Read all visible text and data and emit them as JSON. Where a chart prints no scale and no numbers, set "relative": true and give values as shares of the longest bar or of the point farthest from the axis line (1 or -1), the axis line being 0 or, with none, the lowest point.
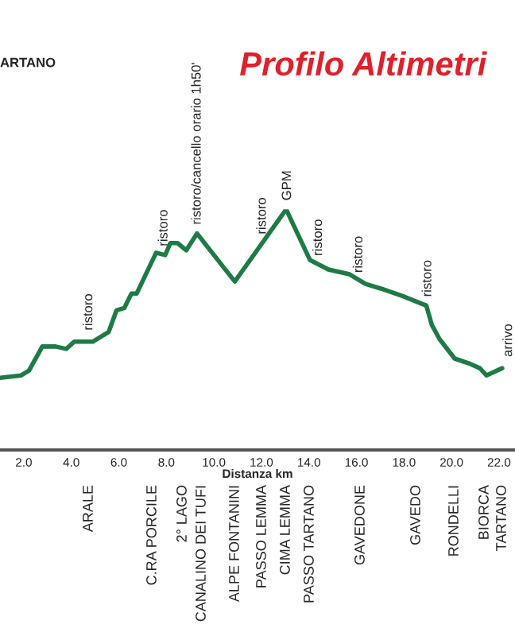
{
  "chart_data": {
    "type": "line",
    "title": "Profilo Altimetri",
    "xlabel": "Distanza km",
    "relative": true,
    "tick_labels": "x",
    "grid": false,
    "legend": false,
    "xlim": [
      1.0,
      22.67
    ],
    "xticks": [
      {
        "value": 2,
        "label": "2.0"
      },
      {
        "value": 4,
        "label": "4.0"
      },
      {
        "value": 6,
        "label": "6.0"
      },
      {
        "value": 8,
        "label": "8.0"
      },
      {
        "value": 10,
        "label": "10.0"
      },
      {
        "value": 12,
        "label": "12.0"
      },
      {
        "value": 14,
        "label": "14.0"
      },
      {
        "value": 16,
        "label": "16.0"
      },
      {
        "value": 18,
        "label": "18.0"
      },
      {
        "value": 20,
        "label": "20.0"
      },
      {
        "value": 22,
        "label": "22.0"
      }
    ],
    "series": [
      {
        "color": "#1e7b45",
        "x": [
          1.0,
          1.89,
          2.22,
          2.78,
          3.34,
          3.79,
          4.12,
          4.9,
          5.57,
          5.9,
          6.23,
          6.53,
          6.75,
          7.57,
          7.95,
          8.17,
          8.47,
          8.84,
          9.29,
          10.88,
          13.04,
          14.04,
          14.82,
          15.71,
          16.38,
          17.05,
          17.94,
          18.94,
          19.17,
          19.5,
          20.13,
          20.73,
          21.19,
          21.47,
          22.13
        ],
        "values": [
          0.3,
          0.31,
          0.33,
          0.43,
          0.43,
          0.42,
          0.45,
          0.45,
          0.49,
          0.58,
          0.59,
          0.65,
          0.65,
          0.82,
          0.81,
          0.86,
          0.86,
          0.83,
          0.9,
          0.7,
          1.0,
          0.79,
          0.75,
          0.73,
          0.69,
          0.67,
          0.64,
          0.6,
          0.52,
          0.46,
          0.38,
          0.36,
          0.34,
          0.31,
          0.34
        ]
      }
    ],
    "annotations": [
      "ARTANO",
      {
        "text": "ristoro",
        "x": 4.74,
        "y": 0.46
      },
      {
        "text": "ristoro",
        "x": 7.9,
        "y": 0.81
      },
      {
        "text": "ristoro/cancello orario 1h50'",
        "x": 9.3,
        "y": 0.9
      },
      {
        "text": "ristoro",
        "x": 12.04,
        "y": 0.86
      },
      {
        "text": "GPM",
        "x": 13.1,
        "y": 1.0
      },
      {
        "text": "ristoro",
        "x": 14.4,
        "y": 0.77
      },
      {
        "text": "ristoro",
        "x": 16.1,
        "y": 0.7
      },
      {
        "text": "ristoro",
        "x": 19.0,
        "y": 0.6
      },
      {
        "text": "arrivo",
        "x": 22.4,
        "y": 0.35
      },
      "ARALE",
      "C.RA PORCILE",
      "2° LAGO",
      "CANALINO DEI TUFI",
      "ALPE FONTANINI",
      "PASSO LEMMA",
      "CIMA LEMMA",
      "PASSO TARTANO",
      "GAVEDONE",
      "GAVEDO",
      "RONDELLI",
      "BIORCA",
      "TARTANO"
    ]
  }
}
